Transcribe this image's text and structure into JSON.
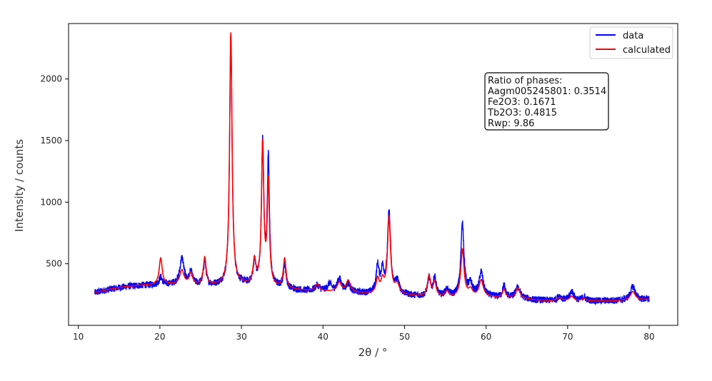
{
  "chart_data": {
    "type": "line",
    "title": "",
    "xlabel": "2θ / °",
    "ylabel": "Intensity / counts",
    "xlim": [
      8.8,
      83.5
    ],
    "ylim": [
      0,
      2450
    ],
    "xticks": [
      10,
      20,
      30,
      40,
      50,
      60,
      70,
      80
    ],
    "yticks": [
      500,
      1000,
      1500,
      2000
    ],
    "grid": false,
    "legend_position": "top-right",
    "x_start": 12,
    "x_end": 80,
    "baseline": [
      [
        12,
        265
      ],
      [
        14,
        295
      ],
      [
        16,
        315
      ],
      [
        18,
        325
      ],
      [
        20,
        330
      ],
      [
        22,
        330
      ],
      [
        24,
        325
      ],
      [
        26,
        320
      ],
      [
        28,
        325
      ],
      [
        30,
        330
      ],
      [
        32,
        320
      ],
      [
        34,
        305
      ],
      [
        36,
        290
      ],
      [
        38,
        280
      ],
      [
        40,
        275
      ],
      [
        42,
        270
      ],
      [
        44,
        262
      ],
      [
        46,
        255
      ],
      [
        48,
        255
      ],
      [
        50,
        245
      ],
      [
        52,
        232
      ],
      [
        54,
        228
      ],
      [
        56,
        225
      ],
      [
        58,
        228
      ],
      [
        60,
        230
      ],
      [
        62,
        225
      ],
      [
        64,
        222
      ],
      [
        66,
        205
      ],
      [
        68,
        200
      ],
      [
        70,
        200
      ],
      [
        72,
        198
      ],
      [
        74,
        198
      ],
      [
        76,
        200
      ],
      [
        78,
        205
      ],
      [
        80,
        210
      ]
    ],
    "peaks_calculated": [
      [
        20.1,
        215,
        0.22
      ],
      [
        22.7,
        115,
        0.3
      ],
      [
        23.8,
        95,
        0.25
      ],
      [
        25.5,
        225,
        0.2
      ],
      [
        28.7,
        2045,
        0.18
      ],
      [
        31.6,
        195,
        0.2
      ],
      [
        32.6,
        1145,
        0.17
      ],
      [
        33.3,
        835,
        0.16
      ],
      [
        35.3,
        240,
        0.2
      ],
      [
        39.3,
        55,
        0.3
      ],
      [
        42.0,
        75,
        0.3
      ],
      [
        43.1,
        95,
        0.3
      ],
      [
        46.7,
        115,
        0.22
      ],
      [
        47.3,
        95,
        0.22
      ],
      [
        48.1,
        615,
        0.22
      ],
      [
        49.1,
        75,
        0.3
      ],
      [
        53.0,
        165,
        0.22
      ],
      [
        53.7,
        115,
        0.22
      ],
      [
        55.2,
        45,
        0.3
      ],
      [
        57.1,
        385,
        0.24
      ],
      [
        58.1,
        55,
        0.3
      ],
      [
        59.4,
        135,
        0.3
      ],
      [
        62.2,
        65,
        0.2
      ],
      [
        63.9,
        80,
        0.3
      ],
      [
        69.0,
        25,
        0.3
      ],
      [
        70.5,
        35,
        0.3
      ],
      [
        72.0,
        20,
        0.3
      ],
      [
        78.0,
        70,
        0.35
      ]
    ],
    "peaks_data": [
      [
        20.1,
        60,
        0.22
      ],
      [
        22.7,
        215,
        0.3
      ],
      [
        23.8,
        95,
        0.25
      ],
      [
        25.5,
        195,
        0.2
      ],
      [
        28.7,
        2015,
        0.18
      ],
      [
        31.6,
        175,
        0.2
      ],
      [
        32.6,
        1145,
        0.17
      ],
      [
        33.3,
        1025,
        0.16
      ],
      [
        35.3,
        190,
        0.2
      ],
      [
        39.3,
        45,
        0.3
      ],
      [
        40.8,
        60,
        0.3
      ],
      [
        42.0,
        105,
        0.3
      ],
      [
        43.1,
        65,
        0.3
      ],
      [
        46.7,
        215,
        0.22
      ],
      [
        47.3,
        175,
        0.22
      ],
      [
        48.1,
        655,
        0.22
      ],
      [
        49.1,
        95,
        0.3
      ],
      [
        53.0,
        145,
        0.22
      ],
      [
        53.7,
        155,
        0.22
      ],
      [
        55.2,
        55,
        0.3
      ],
      [
        57.1,
        585,
        0.24
      ],
      [
        58.1,
        95,
        0.3
      ],
      [
        59.4,
        195,
        0.3
      ],
      [
        62.2,
        95,
        0.2
      ],
      [
        63.9,
        85,
        0.3
      ],
      [
        69.0,
        35,
        0.3
      ],
      [
        70.5,
        75,
        0.3
      ],
      [
        72.0,
        30,
        0.3
      ],
      [
        78.0,
        110,
        0.35
      ]
    ],
    "noise_amplitude": 28,
    "series": [
      {
        "name": "data",
        "color": "#0000ff"
      },
      {
        "name": "calculated",
        "color": "#ff0000"
      }
    ],
    "annotation": [
      "Ratio of phases:",
      "Aagm005245801: 0.3514",
      "Fe2O3: 0.1671",
      "Tb2O3: 0.4815",
      "Rwp: 9.86"
    ]
  }
}
